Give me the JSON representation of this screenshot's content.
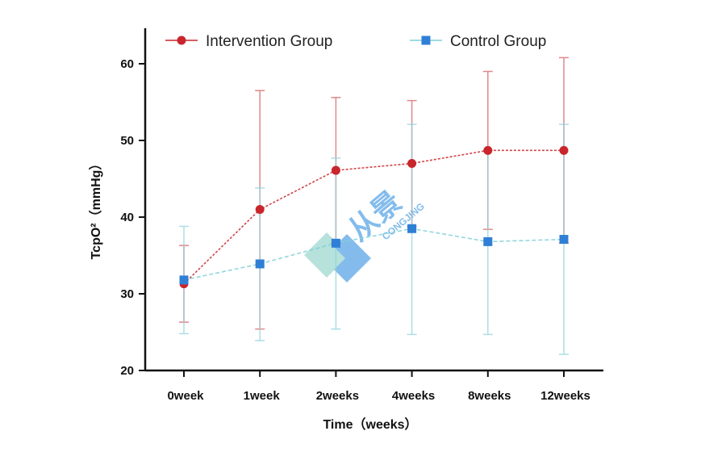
{
  "chart_data": {
    "type": "line",
    "title": "",
    "xlabel": "Time（weeks）",
    "ylabel": "TcpO²（mmHg）",
    "categories": [
      "0week",
      "1week",
      "2weeks",
      "4weeks",
      "8weeks",
      "12weeks"
    ],
    "ylim": [
      20,
      65
    ],
    "yticks": [
      20,
      30,
      40,
      50,
      60
    ],
    "legend_position": "top",
    "series": [
      {
        "name": "Intervention Group",
        "color": "#c8262c",
        "marker": "circle",
        "values": [
          31.3,
          41.0,
          46.1,
          47.0,
          48.7,
          48.7
        ],
        "error_upper": [
          36.3,
          56.5,
          55.6,
          55.2,
          59.0,
          60.8
        ],
        "error_lower": [
          26.3,
          25.4,
          36.6,
          38.8,
          38.4,
          36.6
        ]
      },
      {
        "name": "Control Group",
        "color": "#2f7fd6",
        "error_color": "#8fd3dd",
        "marker": "square",
        "values": [
          31.8,
          33.9,
          36.6,
          38.5,
          36.8,
          37.1
        ],
        "error_upper": [
          38.8,
          43.8,
          47.7,
          52.1,
          48.7,
          52.1
        ],
        "error_lower": [
          24.8,
          23.9,
          25.4,
          24.7,
          24.7,
          22.1
        ]
      }
    ]
  },
  "watermark": {
    "chinese": "从景",
    "latin": "CONGJING"
  }
}
